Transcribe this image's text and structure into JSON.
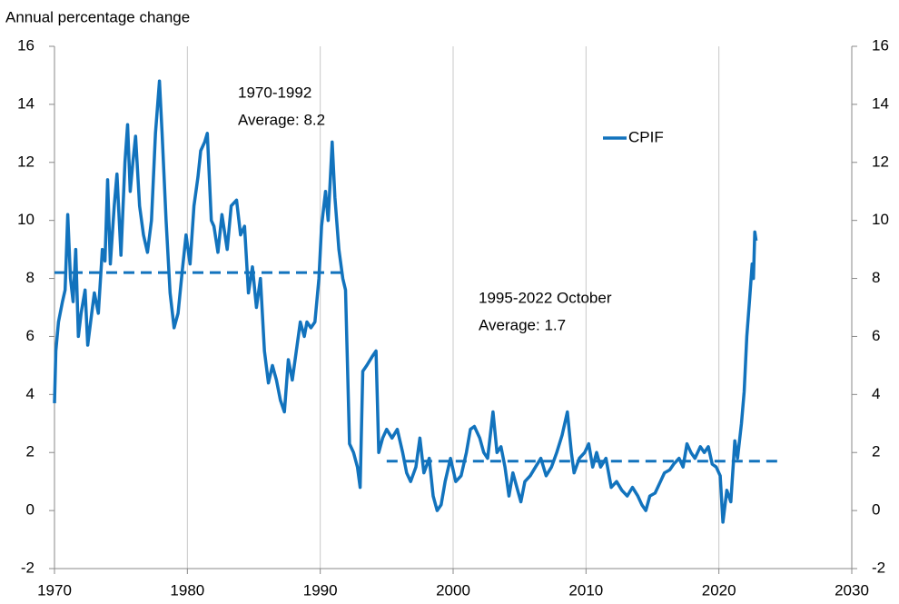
{
  "chart_data": {
    "type": "line",
    "title": "Annual percentage change",
    "xlim": [
      1970,
      2030
    ],
    "xticks": [
      1970,
      1980,
      1990,
      2000,
      2010,
      2020,
      2030
    ],
    "ylim": [
      -2,
      16
    ],
    "yticks": [
      -2,
      0,
      2,
      4,
      6,
      8,
      10,
      12,
      14,
      16
    ],
    "y2lim": [
      -2,
      16
    ],
    "y2ticks": [
      -2,
      0,
      2,
      4,
      6,
      8,
      10,
      12,
      14,
      16
    ],
    "grid": "x",
    "legend": "upper right",
    "series": [
      {
        "name": "CPIF",
        "color": "#1273bd",
        "x": [
          1970.0,
          1970.1,
          1970.3,
          1970.6,
          1970.8,
          1971.0,
          1971.2,
          1971.4,
          1971.6,
          1971.8,
          1972.0,
          1972.3,
          1972.5,
          1972.8,
          1973.0,
          1973.3,
          1973.6,
          1973.8,
          1974.0,
          1974.2,
          1974.5,
          1974.7,
          1975.0,
          1975.3,
          1975.5,
          1975.7,
          1975.9,
          1976.1,
          1976.4,
          1976.7,
          1977.0,
          1977.3,
          1977.6,
          1977.9,
          1978.1,
          1978.4,
          1978.7,
          1979.0,
          1979.3,
          1979.6,
          1979.9,
          1980.2,
          1980.5,
          1980.8,
          1981.0,
          1981.3,
          1981.5,
          1981.8,
          1982.0,
          1982.3,
          1982.6,
          1983.0,
          1983.3,
          1983.7,
          1984.0,
          1984.3,
          1984.6,
          1984.9,
          1985.2,
          1985.5,
          1985.8,
          1986.1,
          1986.4,
          1986.7,
          1987.0,
          1987.3,
          1987.6,
          1987.9,
          1988.2,
          1988.5,
          1988.8,
          1989.0,
          1989.3,
          1989.6,
          1989.9,
          1990.1,
          1990.4,
          1990.6,
          1990.9,
          1991.1,
          1991.4,
          1991.7,
          1991.9,
          1992.2,
          1992.5,
          1992.8,
          1993.0,
          1993.2,
          1993.5,
          1993.9,
          1994.2,
          1994.4,
          1994.7,
          1995.0,
          1995.4,
          1995.8,
          1996.2,
          1996.5,
          1996.8,
          1997.2,
          1997.5,
          1997.8,
          1998.2,
          1998.5,
          1998.8,
          1999.1,
          1999.4,
          1999.8,
          2000.2,
          2000.6,
          2001.0,
          2001.3,
          2001.6,
          2002.0,
          2002.3,
          2002.6,
          2003.0,
          2003.3,
          2003.6,
          2003.9,
          2004.2,
          2004.5,
          2004.8,
          2005.1,
          2005.4,
          2005.8,
          2006.2,
          2006.6,
          2007.0,
          2007.4,
          2007.8,
          2008.2,
          2008.6,
          2008.9,
          2009.1,
          2009.5,
          2009.9,
          2010.2,
          2010.5,
          2010.8,
          2011.1,
          2011.5,
          2011.9,
          2012.3,
          2012.7,
          2013.1,
          2013.5,
          2013.9,
          2014.2,
          2014.5,
          2014.8,
          2015.2,
          2015.6,
          2015.9,
          2016.3,
          2016.6,
          2017.0,
          2017.3,
          2017.6,
          2017.9,
          2018.2,
          2018.6,
          2018.9,
          2019.2,
          2019.5,
          2019.8,
          2020.1,
          2020.3,
          2020.6,
          2020.9,
          2021.2,
          2021.4,
          2021.7,
          2021.9,
          2022.1,
          2022.3,
          2022.5,
          2022.6,
          2022.7,
          2022.8
        ],
        "values": [
          3.7,
          5.5,
          6.5,
          7.2,
          7.6,
          10.2,
          8.0,
          7.2,
          9.0,
          6.0,
          6.8,
          7.6,
          5.7,
          6.8,
          7.5,
          6.8,
          9.0,
          8.6,
          11.4,
          8.5,
          10.5,
          11.6,
          8.8,
          12.0,
          13.3,
          11.0,
          12.0,
          12.9,
          10.5,
          9.5,
          8.9,
          10.0,
          13.0,
          14.8,
          13.0,
          10.0,
          7.5,
          6.3,
          6.8,
          8.2,
          9.5,
          8.5,
          10.5,
          11.5,
          12.4,
          12.7,
          13.0,
          10.0,
          9.8,
          8.9,
          10.2,
          9.0,
          10.5,
          10.7,
          9.5,
          9.8,
          7.5,
          8.4,
          7.0,
          8.0,
          5.5,
          4.4,
          5.0,
          4.5,
          3.8,
          3.4,
          5.2,
          4.5,
          5.5,
          6.5,
          6.0,
          6.5,
          6.3,
          6.5,
          8.0,
          9.8,
          11.0,
          10.0,
          12.7,
          10.8,
          9.0,
          8.0,
          7.6,
          2.3,
          2.0,
          1.5,
          0.8,
          4.8,
          5.0,
          5.3,
          5.5,
          2.0,
          2.5,
          2.8,
          2.5,
          2.8,
          2.0,
          1.3,
          1.0,
          1.5,
          2.5,
          1.3,
          1.8,
          0.5,
          0.0,
          0.2,
          1.0,
          1.8,
          1.0,
          1.2,
          2.0,
          2.8,
          2.9,
          2.5,
          2.0,
          1.8,
          3.4,
          2.0,
          2.2,
          1.5,
          0.5,
          1.3,
          0.8,
          0.3,
          1.0,
          1.2,
          1.5,
          1.8,
          1.2,
          1.5,
          2.0,
          2.6,
          3.4,
          2.0,
          1.3,
          1.8,
          2.0,
          2.3,
          1.5,
          2.0,
          1.5,
          1.8,
          0.8,
          1.0,
          0.7,
          0.5,
          0.8,
          0.5,
          0.2,
          0.0,
          0.5,
          0.6,
          1.0,
          1.3,
          1.4,
          1.6,
          1.8,
          1.5,
          2.3,
          2.0,
          1.8,
          2.2,
          2.0,
          2.2,
          1.6,
          1.5,
          1.2,
          -0.4,
          0.7,
          0.3,
          2.4,
          1.8,
          3.0,
          4.1,
          6.0,
          7.2,
          8.5,
          8.0,
          9.6,
          9.3
        ]
      }
    ],
    "reference_lines": [
      {
        "x": [
          1970,
          1992
        ],
        "value": 8.2,
        "color": "#1273bd",
        "label": [
          "1970-1992",
          "Average: 8.2"
        ]
      },
      {
        "x": [
          1995,
          2024.8
        ],
        "value": 1.7,
        "color": "#1273bd",
        "label": [
          "1995-2022 October",
          "Average: 1.7"
        ]
      }
    ]
  }
}
